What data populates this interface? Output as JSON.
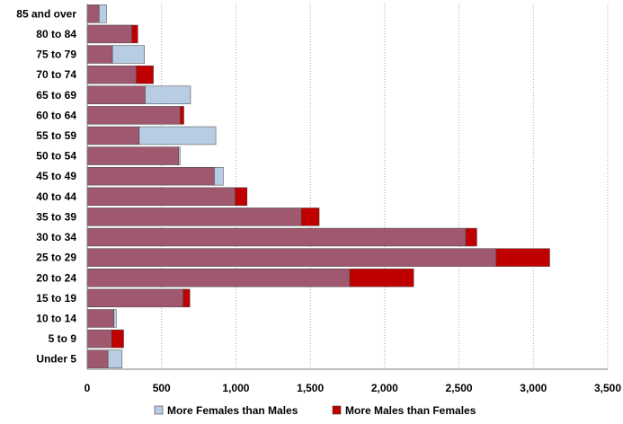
{
  "chart_data": {
    "type": "bar",
    "orientation": "horizontal",
    "stacked": true,
    "categories": [
      "85 and over",
      "80 to 84",
      "75 to 79",
      "70 to 74",
      "65 to 69",
      "60 to 64",
      "55 to 59",
      "50 to 54",
      "45 to 49",
      "40 to 44",
      "35 to 39",
      "30 to 34",
      "25 to 29",
      "20 to 24",
      "15 to 19",
      "10 to 14",
      "5 to 9",
      "Under 5"
    ],
    "base_values": [
      80,
      300,
      170,
      330,
      390,
      625,
      350,
      615,
      855,
      995,
      1440,
      2545,
      2750,
      1765,
      645,
      180,
      165,
      140
    ],
    "series": [
      {
        "name": "More Females than Males",
        "color": "#b8cce4",
        "values": [
          50,
          0,
          215,
          0,
          305,
          0,
          515,
          10,
          60,
          0,
          0,
          0,
          0,
          0,
          0,
          15,
          0,
          95
        ]
      },
      {
        "name": "More Males than Females",
        "color": "#c00000",
        "values": [
          0,
          40,
          0,
          115,
          0,
          25,
          0,
          0,
          0,
          80,
          120,
          75,
          360,
          430,
          45,
          0,
          80,
          0
        ]
      }
    ],
    "base_color": "#a0586e",
    "xlim": [
      0,
      3500
    ],
    "xticks": [
      0,
      500,
      1000,
      1500,
      2000,
      2500,
      3000,
      3500
    ],
    "xtick_labels": [
      "0",
      "500",
      "1,000",
      "1,500",
      "2,000",
      "2,500",
      "3,000",
      "3,500"
    ],
    "grid": "vertical",
    "legend_position": "bottom",
    "title": "",
    "xlabel": "",
    "ylabel": ""
  }
}
